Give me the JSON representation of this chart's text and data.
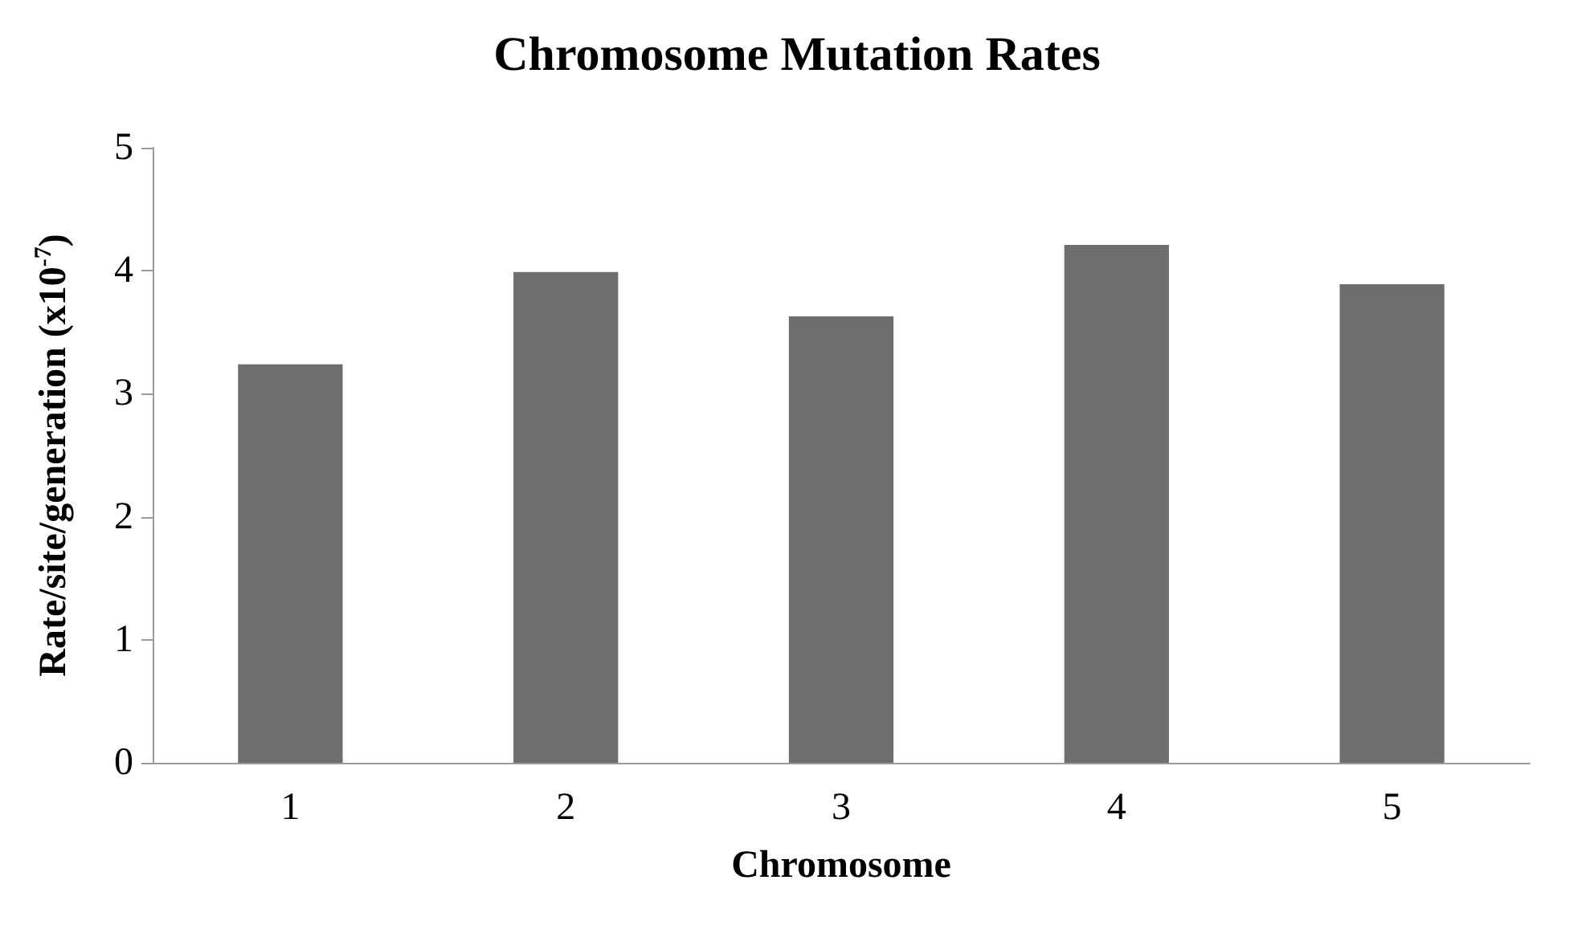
{
  "chart_data": {
    "type": "bar",
    "title": "Chromosome Mutation Rates",
    "xlabel": "Chromosome",
    "ylabel": "Rate/site/generation (x10$^{-7}$)",
    "categories": [
      "1",
      "2",
      "3",
      "4",
      "5"
    ],
    "values": [
      3.24,
      3.99,
      3.63,
      4.21,
      3.89
    ],
    "color": "#6e6e6e",
    "ylim": [
      0,
      5
    ],
    "yticks": [
      0,
      1,
      2,
      3,
      4,
      5
    ],
    "grid": false
  }
}
